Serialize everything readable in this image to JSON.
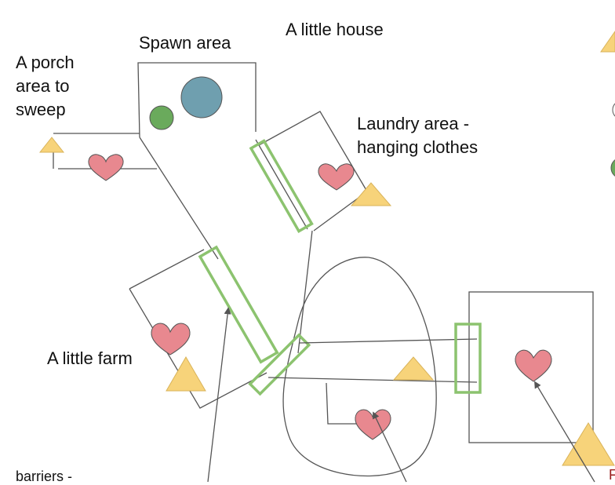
{
  "labels": {
    "spawn": "Spawn area",
    "house": "A little house",
    "porch": "A porch\narea to\nsweep",
    "laundry": "Laundry area -\nhanging clothes",
    "farm": "A little farm",
    "barriers": "barriers -",
    "edge_r": "F"
  },
  "colors": {
    "outline": "#555555",
    "line": "#555555",
    "green_circle": "#6aaa5c",
    "teal_circle": "#6f9faf",
    "heart": "#e8888f",
    "triangle": "#f7d37a",
    "triangle_stroke": "#d9b35a",
    "barrier": "#8cc36f",
    "arrow": "#555555"
  },
  "icons": [
    "heart-icon",
    "triangle-icon",
    "circle-icon",
    "arrow-icon"
  ]
}
